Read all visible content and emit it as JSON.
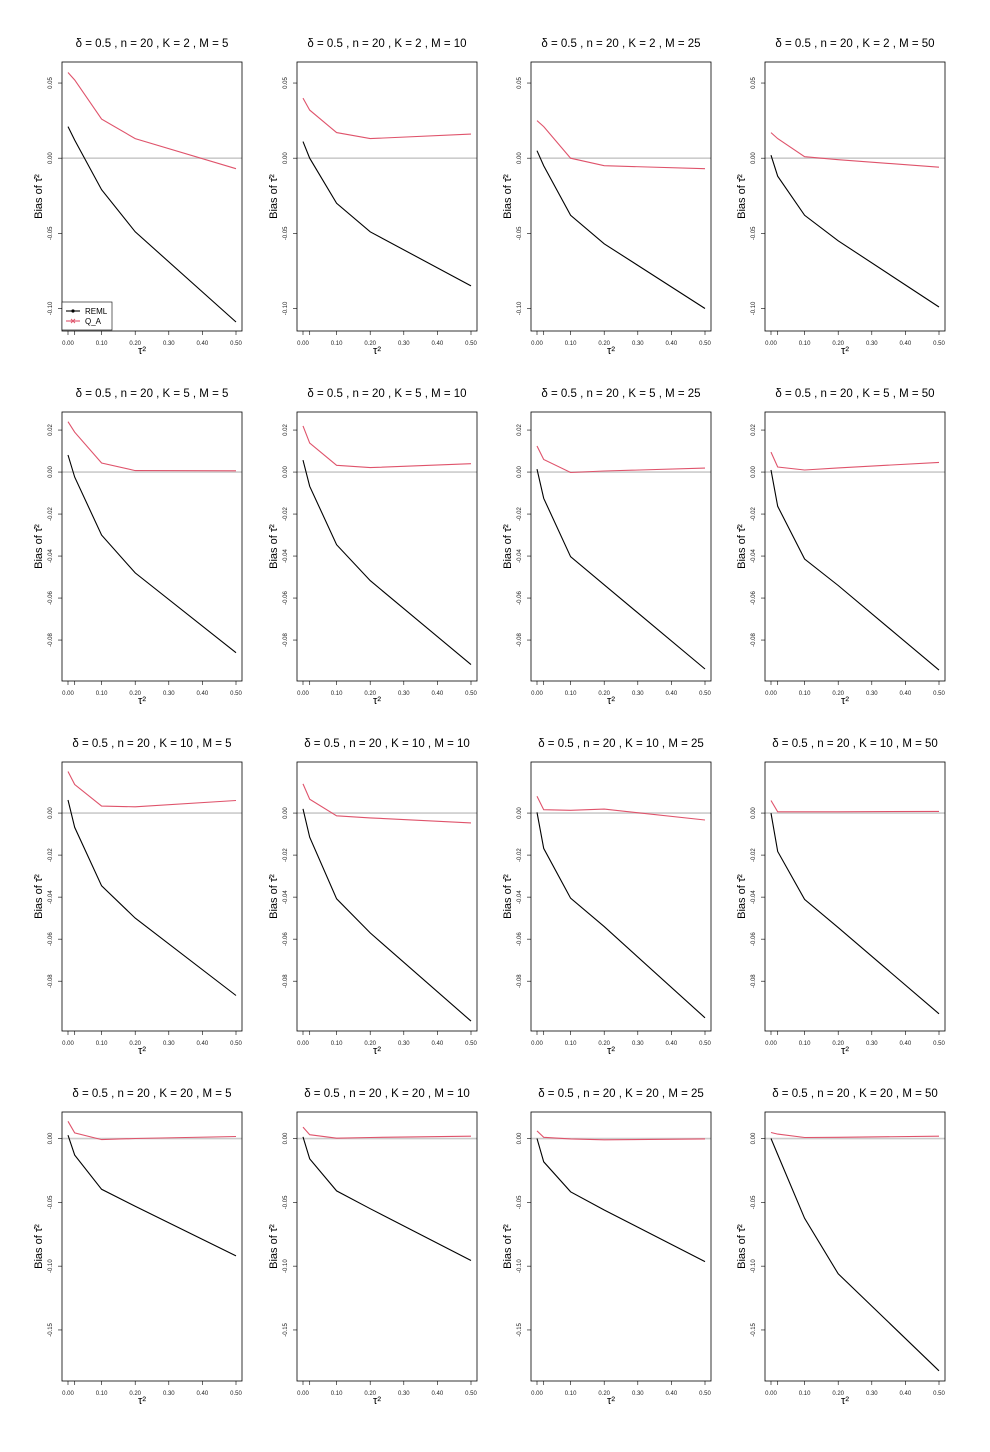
{
  "colors": {
    "REML": "#000000",
    "Q_A": "#DF536B",
    "zero_line": "#CCCCCC",
    "frame": "#000000"
  },
  "legend": {
    "location": "bottom-left",
    "panel": 0,
    "entries": [
      {
        "label": "REML",
        "color": "#000000",
        "marker": "dot"
      },
      {
        "label": "Q_A",
        "color": "#DF536B",
        "marker": "x"
      }
    ]
  },
  "chart_data": [
    {
      "type": "line",
      "title": "δ = 0.5 , n = 20 , K = 2 , M = 5",
      "xlabel": "τ²",
      "ylabel": "Bias of τ̂²",
      "x": [
        0,
        0.02,
        0.1,
        0.2,
        0.5
      ],
      "xlim": [
        0,
        0.5
      ],
      "xticks": [
        "0.00",
        "0.10",
        "0.20",
        "0.30",
        "0.40",
        "0.50"
      ],
      "ylim": [
        -0.115,
        0.064
      ],
      "yticks": [
        "-0.10",
        "-0.05",
        "0.00",
        "0.05"
      ],
      "series": [
        {
          "name": "REML",
          "values": [
            0.021,
            0.012,
            -0.021,
            -0.049,
            -0.109
          ]
        },
        {
          "name": "Q_A",
          "values": [
            0.057,
            0.052,
            0.026,
            0.013,
            -0.007
          ]
        }
      ]
    },
    {
      "type": "line",
      "title": "δ = 0.5 , n = 20 , K = 2 , M = 10",
      "xlabel": "τ²",
      "ylabel": "Bias of τ̂²",
      "x": [
        0,
        0.02,
        0.1,
        0.2,
        0.5
      ],
      "xlim": [
        0,
        0.5
      ],
      "xticks": [
        "0.00",
        "0.10",
        "0.20",
        "0.30",
        "0.40",
        "0.50"
      ],
      "ylim": [
        -0.115,
        0.064
      ],
      "yticks": [
        "-0.10",
        "-0.05",
        "0.00",
        "0.05"
      ],
      "series": [
        {
          "name": "REML",
          "values": [
            0.011,
            0.0,
            -0.03,
            -0.049,
            -0.085
          ]
        },
        {
          "name": "Q_A",
          "values": [
            0.04,
            0.032,
            0.017,
            0.013,
            0.016
          ]
        }
      ]
    },
    {
      "type": "line",
      "title": "δ = 0.5 , n = 20 , K = 2 , M = 25",
      "xlabel": "τ²",
      "ylabel": "Bias of τ̂²",
      "x": [
        0,
        0.02,
        0.1,
        0.2,
        0.5
      ],
      "xlim": [
        0,
        0.5
      ],
      "xticks": [
        "0.00",
        "0.10",
        "0.20",
        "0.30",
        "0.40",
        "0.50"
      ],
      "ylim": [
        -0.115,
        0.064
      ],
      "yticks": [
        "-0.10",
        "-0.05",
        "0.00",
        "0.05"
      ],
      "series": [
        {
          "name": "REML",
          "values": [
            0.005,
            -0.005,
            -0.038,
            -0.057,
            -0.1
          ]
        },
        {
          "name": "Q_A",
          "values": [
            0.025,
            0.021,
            0.0,
            -0.005,
            -0.007
          ]
        }
      ]
    },
    {
      "type": "line",
      "title": "δ = 0.5 , n = 20 , K = 2 , M = 50",
      "xlabel": "τ²",
      "ylabel": "Bias of τ̂²",
      "x": [
        0,
        0.02,
        0.1,
        0.2,
        0.5
      ],
      "xlim": [
        0,
        0.5
      ],
      "xticks": [
        "0.00",
        "0.10",
        "0.20",
        "0.30",
        "0.40",
        "0.50"
      ],
      "ylim": [
        -0.115,
        0.064
      ],
      "yticks": [
        "-0.10",
        "-0.05",
        "0.00",
        "0.05"
      ],
      "series": [
        {
          "name": "REML",
          "values": [
            0.002,
            -0.012,
            -0.038,
            -0.055,
            -0.099
          ]
        },
        {
          "name": "Q_A",
          "values": [
            0.017,
            0.013,
            0.001,
            -0.001,
            -0.006
          ]
        }
      ]
    },
    {
      "type": "line",
      "title": "δ = 0.5 , n = 20 , K = 5 , M = 5",
      "xlabel": "τ²",
      "ylabel": "Bias of τ̂²",
      "x": [
        0,
        0.02,
        0.1,
        0.2,
        0.5
      ],
      "xlim": [
        0,
        0.5
      ],
      "xticks": [
        "0.00",
        "0.10",
        "0.20",
        "0.30",
        "0.40",
        "0.50"
      ],
      "ylim": [
        -0.0995,
        0.0286
      ],
      "yticks": [
        "-0.08",
        "-0.06",
        "-0.04",
        "-0.02",
        "0.00",
        "0.02"
      ],
      "series": [
        {
          "name": "REML",
          "values": [
            0.0081,
            -0.0024,
            -0.03,
            -0.048,
            -0.086
          ]
        },
        {
          "name": "Q_A",
          "values": [
            0.024,
            0.019,
            0.0043,
            0.0007,
            0.0006
          ]
        }
      ]
    },
    {
      "type": "line",
      "title": "δ = 0.5 , n = 20 , K = 5 , M = 10",
      "xlabel": "τ²",
      "ylabel": "Bias of τ̂²",
      "x": [
        0,
        0.02,
        0.1,
        0.2,
        0.5
      ],
      "xlim": [
        0,
        0.5
      ],
      "xticks": [
        "0.00",
        "0.10",
        "0.20",
        "0.30",
        "0.40",
        "0.50"
      ],
      "ylim": [
        -0.0995,
        0.0286
      ],
      "yticks": [
        "-0.08",
        "-0.06",
        "-0.04",
        "-0.02",
        "0.00",
        "0.02"
      ],
      "series": [
        {
          "name": "REML",
          "values": [
            0.0057,
            -0.0068,
            -0.0346,
            -0.0517,
            -0.0917
          ]
        },
        {
          "name": "Q_A",
          "values": [
            0.022,
            0.0138,
            0.0032,
            0.0021,
            0.004
          ]
        }
      ]
    },
    {
      "type": "line",
      "title": "δ = 0.5 , n = 20 , K = 5 , M = 25",
      "xlabel": "τ²",
      "ylabel": "Bias of τ̂²",
      "x": [
        0,
        0.02,
        0.1,
        0.2,
        0.5
      ],
      "xlim": [
        0,
        0.5
      ],
      "xticks": [
        "0.00",
        "0.10",
        "0.20",
        "0.30",
        "0.40",
        "0.50"
      ],
      "ylim": [
        -0.0995,
        0.0286
      ],
      "yticks": [
        "-0.08",
        "-0.06",
        "-0.04",
        "-0.02",
        "0.00",
        "0.02"
      ],
      "series": [
        {
          "name": "REML",
          "values": [
            0.0014,
            -0.0125,
            -0.0403,
            -0.0537,
            -0.0938
          ]
        },
        {
          "name": "Q_A",
          "values": [
            0.0124,
            0.006,
            -0.0002,
            0.0005,
            0.0019
          ]
        }
      ]
    },
    {
      "type": "line",
      "title": "δ = 0.5 , n = 20 , K = 5 , M = 50",
      "xlabel": "τ²",
      "ylabel": "Bias of τ̂²",
      "x": [
        0,
        0.02,
        0.1,
        0.2,
        0.5
      ],
      "xlim": [
        0,
        0.5
      ],
      "xticks": [
        "0.00",
        "0.10",
        "0.20",
        "0.30",
        "0.40",
        "0.50"
      ],
      "ylim": [
        -0.0995,
        0.0286
      ],
      "yticks": [
        "-0.08",
        "-0.06",
        "-0.04",
        "-0.02",
        "0.00",
        "0.02"
      ],
      "series": [
        {
          "name": "REML",
          "values": [
            0.001,
            -0.0163,
            -0.0414,
            -0.054,
            -0.0943
          ]
        },
        {
          "name": "Q_A",
          "values": [
            0.0095,
            0.0024,
            0.001,
            0.002,
            0.0046
          ]
        }
      ]
    },
    {
      "type": "line",
      "title": "δ = 0.5 , n = 20 , K = 10 , M = 5",
      "xlabel": "τ²",
      "ylabel": "Bias of τ̂²",
      "x": [
        0,
        0.02,
        0.1,
        0.2,
        0.5
      ],
      "xlim": [
        0,
        0.5
      ],
      "xticks": [
        "0.00",
        "0.10",
        "0.20",
        "0.30",
        "0.40",
        "0.50"
      ],
      "ylim": [
        -0.1037,
        0.0243
      ],
      "yticks": [
        "-0.08",
        "-0.06",
        "-0.04",
        "-0.02",
        "0.00"
      ],
      "series": [
        {
          "name": "REML",
          "values": [
            0.0062,
            -0.0068,
            -0.0346,
            -0.05,
            -0.0868
          ]
        },
        {
          "name": "Q_A",
          "values": [
            0.0198,
            0.0136,
            0.0033,
            0.003,
            0.006
          ]
        }
      ]
    },
    {
      "type": "line",
      "title": "δ = 0.5 , n = 20 , K = 10 , M = 10",
      "xlabel": "τ²",
      "ylabel": "Bias of τ̂²",
      "x": [
        0,
        0.02,
        0.1,
        0.2,
        0.5
      ],
      "xlim": [
        0,
        0.5
      ],
      "xticks": [
        "0.00",
        "0.10",
        "0.20",
        "0.30",
        "0.40",
        "0.50"
      ],
      "ylim": [
        -0.1037,
        0.0243
      ],
      "yticks": [
        "-0.08",
        "-0.06",
        "-0.04",
        "-0.02",
        "0.00"
      ],
      "series": [
        {
          "name": "REML",
          "values": [
            0.002,
            -0.0115,
            -0.0408,
            -0.057,
            -0.099
          ]
        },
        {
          "name": "Q_A",
          "values": [
            0.0139,
            0.0066,
            -0.0013,
            -0.0023,
            -0.0047
          ]
        }
      ]
    },
    {
      "type": "line",
      "title": "δ = 0.5 , n = 20 , K = 10 , M = 25",
      "xlabel": "τ²",
      "ylabel": "Bias of τ̂²",
      "x": [
        0,
        0.02,
        0.1,
        0.2,
        0.5
      ],
      "xlim": [
        0,
        0.5
      ],
      "xticks": [
        "0.00",
        "0.10",
        "0.20",
        "0.30",
        "0.40",
        "0.50"
      ],
      "ylim": [
        -0.1037,
        0.0243
      ],
      "yticks": [
        "-0.08",
        "-0.06",
        "-0.04",
        "-0.02",
        "0.00"
      ],
      "series": [
        {
          "name": "REML",
          "values": [
            0.0003,
            -0.0168,
            -0.0405,
            -0.054,
            -0.0974
          ]
        },
        {
          "name": "Q_A",
          "values": [
            0.008,
            0.0016,
            0.0013,
            0.0019,
            -0.0033
          ]
        }
      ]
    },
    {
      "type": "line",
      "title": "δ = 0.5 , n = 20 , K = 10 , M = 50",
      "xlabel": "τ²",
      "ylabel": "Bias of τ̂²",
      "x": [
        0,
        0.02,
        0.1,
        0.2,
        0.5
      ],
      "xlim": [
        0,
        0.5
      ],
      "xticks": [
        "0.00",
        "0.10",
        "0.20",
        "0.30",
        "0.40",
        "0.50"
      ],
      "ylim": [
        -0.1037,
        0.0243
      ],
      "yticks": [
        "-0.08",
        "-0.06",
        "-0.04",
        "-0.02",
        "0.00"
      ],
      "series": [
        {
          "name": "REML",
          "values": [
            0.0,
            -0.0183,
            -0.0411,
            -0.0545,
            -0.0955
          ]
        },
        {
          "name": "Q_A",
          "values": [
            0.006,
            0.0006,
            0.0006,
            0.0006,
            0.0008
          ]
        }
      ]
    },
    {
      "type": "line",
      "title": "δ = 0.5 , n = 20 , K = 20 , M = 5",
      "xlabel": "τ²",
      "ylabel": "Bias of τ̂²",
      "x": [
        0,
        0.02,
        0.1,
        0.2,
        0.5
      ],
      "xlim": [
        0,
        0.5
      ],
      "xticks": [
        "0.00",
        "0.10",
        "0.20",
        "0.30",
        "0.40",
        "0.50"
      ],
      "ylim": [
        -0.19,
        0.0208
      ],
      "yticks": [
        "-0.15",
        "-0.10",
        "-0.05",
        "0.00"
      ],
      "series": [
        {
          "name": "REML",
          "values": [
            0.0026,
            -0.013,
            -0.0398,
            -0.053,
            -0.092
          ]
        },
        {
          "name": "Q_A",
          "values": [
            0.0135,
            0.0044,
            -0.0008,
            0.0,
            0.0016
          ]
        }
      ]
    },
    {
      "type": "line",
      "title": "δ = 0.5 , n = 20 , K = 20 , M = 10",
      "xlabel": "τ²",
      "ylabel": "Bias of τ̂²",
      "x": [
        0,
        0.02,
        0.1,
        0.2,
        0.5
      ],
      "xlim": [
        0,
        0.5
      ],
      "xticks": [
        "0.00",
        "0.10",
        "0.20",
        "0.30",
        "0.40",
        "0.50"
      ],
      "ylim": [
        -0.19,
        0.0208
      ],
      "yticks": [
        "-0.15",
        "-0.10",
        "-0.05",
        "0.00"
      ],
      "series": [
        {
          "name": "REML",
          "values": [
            0.0013,
            -0.0159,
            -0.041,
            -0.055,
            -0.0956
          ]
        },
        {
          "name": "Q_A",
          "values": [
            0.009,
            0.003,
            0.0003,
            0.0008,
            0.0018
          ]
        }
      ]
    },
    {
      "type": "line",
      "title": "δ = 0.5 , n = 20 , K = 20 , M = 25",
      "xlabel": "τ²",
      "ylabel": "Bias of τ̂²",
      "x": [
        0,
        0.02,
        0.1,
        0.2,
        0.5
      ],
      "xlim": [
        0,
        0.5
      ],
      "xticks": [
        "0.00",
        "0.10",
        "0.20",
        "0.30",
        "0.40",
        "0.50"
      ],
      "ylim": [
        -0.19,
        0.0208
      ],
      "yticks": [
        "-0.15",
        "-0.10",
        "-0.05",
        "0.00"
      ],
      "series": [
        {
          "name": "REML",
          "values": [
            0.0,
            -0.0182,
            -0.0417,
            -0.056,
            -0.0964
          ]
        },
        {
          "name": "Q_A",
          "values": [
            0.006,
            0.001,
            -0.0003,
            -0.001,
            -0.0003
          ]
        }
      ]
    },
    {
      "type": "line",
      "title": "δ = 0.5 , n = 20 , K = 20 , M = 50",
      "xlabel": "τ²",
      "ylabel": "Bias of τ̂²",
      "x": [
        0,
        0.02,
        0.1,
        0.2,
        0.5
      ],
      "xlim": [
        0,
        0.5
      ],
      "xticks": [
        "0.00",
        "0.10",
        "0.20",
        "0.30",
        "0.40",
        "0.50"
      ],
      "ylim": [
        -0.19,
        0.0208
      ],
      "yticks": [
        "-0.15",
        "-0.10",
        "-0.05",
        "0.00"
      ],
      "series": [
        {
          "name": "REML",
          "values": [
            0.0,
            -0.0125,
            -0.0625,
            -0.106,
            -0.182
          ]
        },
        {
          "name": "Q_A",
          "values": [
            0.0047,
            0.0035,
            0.0008,
            0.001,
            0.0018
          ]
        }
      ]
    }
  ]
}
